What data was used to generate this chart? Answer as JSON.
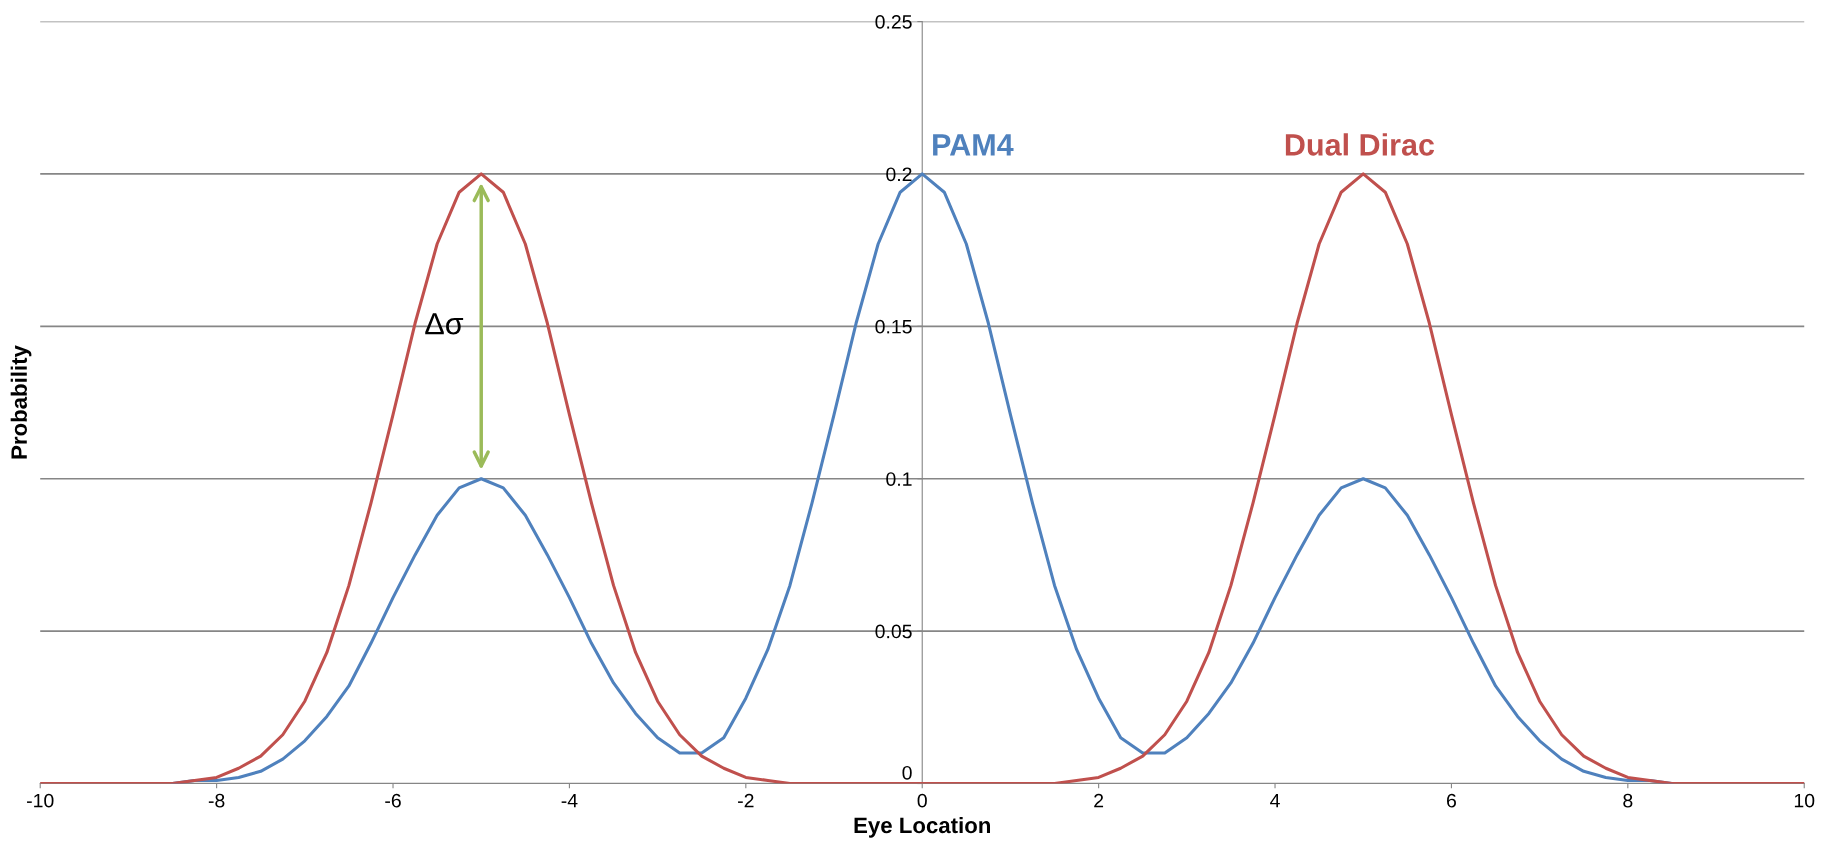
{
  "chart_data": {
    "type": "line",
    "xlabel": "Eye Location",
    "ylabel": "Probability",
    "x": [
      -10,
      -9.75,
      -9.5,
      -9.25,
      -9,
      -8.75,
      -8.5,
      -8.25,
      -8,
      -7.75,
      -7.5,
      -7.25,
      -7,
      -6.75,
      -6.5,
      -6.25,
      -6,
      -5.75,
      -5.5,
      -5.25,
      -5,
      -4.75,
      -4.5,
      -4.25,
      -4,
      -3.75,
      -3.5,
      -3.25,
      -3,
      -2.75,
      -2.5,
      -2.25,
      -2,
      -1.75,
      -1.5,
      -1.25,
      -1,
      -0.75,
      -0.5,
      -0.25,
      0,
      0.25,
      0.5,
      0.75,
      1,
      1.25,
      1.5,
      1.75,
      2,
      2.25,
      2.5,
      2.75,
      3,
      3.25,
      3.5,
      3.75,
      4,
      4.25,
      4.5,
      4.75,
      5,
      5.25,
      5.5,
      5.75,
      6,
      6.25,
      6.5,
      6.75,
      7,
      7.25,
      7.5,
      7.75,
      8,
      8.25,
      8.5,
      8.75,
      9,
      9.25,
      9.5,
      9.75,
      10
    ],
    "series": [
      {
        "name": "PAM4",
        "color": "#4f81bd",
        "values": [
          null,
          null,
          null,
          null,
          null,
          null,
          0,
          0.001,
          0.001,
          0.002,
          0.004,
          0.008,
          0.014,
          0.022,
          0.032,
          0.046,
          0.061,
          0.075,
          0.088,
          0.097,
          0.1,
          0.097,
          0.088,
          0.075,
          0.061,
          0.046,
          0.033,
          0.023,
          0.015,
          0.01,
          0.01,
          0.015,
          0.028,
          0.044,
          0.065,
          0.092,
          0.121,
          0.151,
          0.177,
          0.194,
          0.2,
          0.194,
          0.177,
          0.151,
          0.121,
          0.092,
          0.065,
          0.044,
          0.028,
          0.015,
          0.01,
          0.01,
          0.015,
          0.023,
          0.033,
          0.046,
          0.061,
          0.075,
          0.088,
          0.097,
          0.1,
          0.097,
          0.088,
          0.075,
          0.061,
          0.046,
          0.032,
          0.022,
          0.014,
          0.008,
          0.004,
          0.002,
          0.001,
          0.001,
          0,
          null,
          null,
          null,
          null,
          null,
          null
        ]
      },
      {
        "name": "Dual Dirac",
        "color": "#c0504d",
        "values": [
          0,
          0,
          0,
          0,
          0,
          0,
          0,
          0.001,
          0.002,
          0.005,
          0.009,
          0.016,
          0.027,
          0.043,
          0.065,
          0.092,
          0.121,
          0.151,
          0.177,
          0.194,
          0.2,
          0.194,
          0.177,
          0.151,
          0.121,
          0.092,
          0.065,
          0.043,
          0.027,
          0.016,
          0.009,
          0.005,
          0.002,
          0.001,
          0,
          0,
          0,
          0,
          0,
          0,
          0,
          0,
          0,
          0,
          0,
          0,
          0,
          0.001,
          0.002,
          0.005,
          0.009,
          0.016,
          0.027,
          0.043,
          0.065,
          0.092,
          0.121,
          0.151,
          0.177,
          0.194,
          0.2,
          0.194,
          0.177,
          0.151,
          0.121,
          0.092,
          0.065,
          0.043,
          0.027,
          0.016,
          0.009,
          0.005,
          0.002,
          0.001,
          0,
          0,
          0,
          0,
          0,
          0,
          0
        ]
      }
    ],
    "annotations": [
      "Δσ"
    ],
    "xlim": [
      -10,
      10
    ],
    "xticks": [
      -10,
      -8,
      -6,
      -4,
      -2,
      0,
      2,
      4,
      6,
      8,
      10
    ],
    "ylim": [
      0,
      0.25
    ],
    "yticks": [
      0,
      0.05,
      0.1,
      0.15,
      0.2,
      0.25
    ],
    "grid": "y",
    "legend": false,
    "marker": "none",
    "line_style": "solid"
  }
}
